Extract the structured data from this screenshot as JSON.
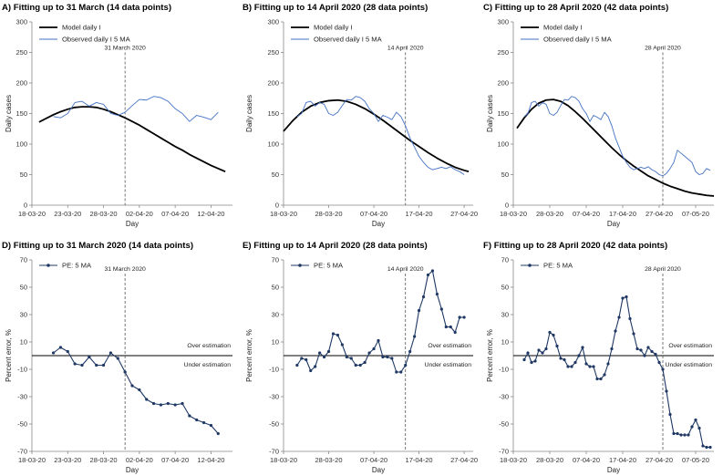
{
  "chart_data": [
    {
      "id": "A",
      "type": "line",
      "title": "A) Fitting up to 31 March (14 data points)",
      "xlabel": "Day",
      "ylabel": "Daily cases",
      "ylim": [
        0,
        300
      ],
      "yticks": [
        0,
        50,
        100,
        150,
        200,
        250,
        300
      ],
      "xlim": [
        0,
        55
      ],
      "xticks": [
        {
          "x": 0,
          "label": "18-03-20"
        },
        {
          "x": 5,
          "label": "23-03-20"
        },
        {
          "x": 10,
          "label": "28-03-20"
        },
        {
          "x": 15,
          "label": "02-04-20"
        },
        {
          "x": 20,
          "label": "07-04-20"
        },
        {
          "x": 25,
          "label": "12-04-20"
        }
      ],
      "xlim_days": [
        0,
        28
      ],
      "grid": false,
      "legend": "top-left",
      "vline": {
        "x": 13,
        "label": "31 March 2020"
      },
      "series": [
        {
          "name": "Model daily I",
          "color": "#000000",
          "style": "thick",
          "x": [
            1,
            2,
            3,
            4,
            5,
            6,
            7,
            8,
            9,
            10,
            11,
            12,
            13,
            14,
            15,
            16,
            17,
            18,
            19,
            20,
            21,
            22,
            23,
            24,
            25,
            26,
            27
          ],
          "values": [
            136,
            142,
            148,
            153,
            157,
            160,
            161,
            161,
            160,
            157,
            153,
            148,
            143,
            137,
            131,
            124,
            117,
            110,
            103,
            96,
            90,
            83,
            77,
            71,
            65,
            60,
            55
          ]
        },
        {
          "name": "Observed daily I 5 MA",
          "color": "#4472C4",
          "style": "thin",
          "x": [
            3,
            4,
            5,
            6,
            7,
            8,
            9,
            10,
            11,
            12,
            13,
            14,
            15,
            16,
            17,
            18,
            19,
            20,
            21,
            22,
            23,
            24,
            25,
            26
          ],
          "values": [
            145,
            143,
            150,
            168,
            170,
            162,
            168,
            165,
            150,
            147,
            152,
            163,
            173,
            172,
            178,
            176,
            170,
            158,
            150,
            137,
            147,
            144,
            140,
            152
          ]
        }
      ]
    },
    {
      "id": "B",
      "type": "line",
      "title": "B) Fitting up to 14 April 2020 (28 data points)",
      "xlabel": "Day",
      "ylabel": "Daily cases",
      "ylim": [
        0,
        300
      ],
      "yticks": [
        0,
        50,
        100,
        150,
        200,
        250,
        300
      ],
      "xticks": [
        {
          "x": 0,
          "label": "18-03-20"
        },
        {
          "x": 10,
          "label": "28-03-20"
        },
        {
          "x": 20,
          "label": "07-04-20"
        },
        {
          "x": 30,
          "label": "17-04-20"
        },
        {
          "x": 40,
          "label": "27-04-20"
        }
      ],
      "xlim_days": [
        0,
        42
      ],
      "grid": false,
      "legend": "top-left",
      "vline": {
        "x": 27,
        "label": "14 April 2020"
      },
      "series": [
        {
          "name": "Model daily I",
          "color": "#000000",
          "style": "thick",
          "x": [
            0,
            2,
            4,
            6,
            8,
            10,
            12,
            14,
            16,
            18,
            20,
            22,
            24,
            26,
            28,
            30,
            32,
            34,
            36,
            38,
            40,
            41
          ],
          "values": [
            121,
            138,
            152,
            162,
            168,
            171,
            172,
            170,
            165,
            158,
            149,
            139,
            128,
            117,
            106,
            96,
            86,
            77,
            69,
            62,
            57,
            55
          ]
        },
        {
          "name": "Observed daily I 5 MA",
          "color": "#4472C4",
          "style": "thin",
          "x": [
            3,
            4,
            5,
            6,
            7,
            8,
            9,
            10,
            11,
            12,
            13,
            14,
            15,
            16,
            17,
            18,
            19,
            20,
            21,
            22,
            23,
            24,
            25,
            26,
            27,
            28,
            29,
            30,
            31,
            32,
            33,
            34,
            35,
            36,
            37,
            38,
            39,
            40
          ],
          "values": [
            145,
            150,
            168,
            170,
            162,
            168,
            165,
            150,
            147,
            152,
            163,
            173,
            172,
            178,
            176,
            170,
            158,
            150,
            137,
            147,
            144,
            140,
            152,
            145,
            130,
            110,
            95,
            80,
            70,
            62,
            58,
            60,
            62,
            60,
            63,
            58,
            55,
            50
          ]
        }
      ]
    },
    {
      "id": "C",
      "type": "line",
      "title": "C) Fitting up to 28 April 2020 (42 data points)",
      "xlabel": "Day",
      "ylabel": "Daily cases",
      "ylim": [
        0,
        300
      ],
      "yticks": [
        0,
        50,
        100,
        150,
        200,
        250,
        300
      ],
      "xticks": [
        {
          "x": 0,
          "label": "18-03-20"
        },
        {
          "x": 10,
          "label": "28-03-20"
        },
        {
          "x": 20,
          "label": "07-04-20"
        },
        {
          "x": 30,
          "label": "17-04-20"
        },
        {
          "x": 40,
          "label": "27-04-20"
        },
        {
          "x": 50,
          "label": "07-05-20"
        }
      ],
      "xlim_days": [
        0,
        55
      ],
      "grid": false,
      "legend": "top-left",
      "vline": {
        "x": 41,
        "label": "28 April 2020"
      },
      "series": [
        {
          "name": "Model daily I",
          "color": "#000000",
          "style": "thick",
          "x": [
            1,
            3,
            5,
            7,
            9,
            11,
            13,
            15,
            17,
            19,
            21,
            23,
            25,
            27,
            29,
            31,
            33,
            35,
            37,
            39,
            41,
            43,
            45,
            47,
            49,
            51,
            53,
            55
          ],
          "values": [
            126,
            143,
            157,
            167,
            172,
            173,
            170,
            163,
            153,
            142,
            130,
            118,
            106,
            94,
            83,
            73,
            64,
            56,
            48,
            42,
            36,
            31,
            27,
            23,
            20,
            18,
            16,
            15
          ]
        },
        {
          "name": "Observed daily I 5 MA",
          "color": "#4472C4",
          "style": "thin",
          "x": [
            3,
            4,
            5,
            6,
            7,
            8,
            9,
            10,
            11,
            12,
            13,
            14,
            15,
            16,
            17,
            18,
            19,
            20,
            21,
            22,
            23,
            24,
            25,
            26,
            27,
            28,
            29,
            30,
            31,
            32,
            33,
            34,
            35,
            36,
            37,
            38,
            39,
            40,
            41,
            42,
            43,
            44,
            45,
            46,
            47,
            48,
            49,
            50,
            51,
            52,
            53,
            54
          ],
          "values": [
            145,
            150,
            168,
            170,
            162,
            168,
            165,
            150,
            147,
            152,
            163,
            173,
            172,
            178,
            176,
            170,
            158,
            150,
            137,
            147,
            144,
            140,
            152,
            145,
            130,
            110,
            95,
            80,
            70,
            62,
            58,
            60,
            62,
            60,
            63,
            58,
            55,
            50,
            48,
            52,
            60,
            70,
            90,
            85,
            80,
            75,
            70,
            55,
            50,
            52,
            60,
            57
          ]
        }
      ]
    },
    {
      "id": "D",
      "type": "line",
      "title": "D) Fitting up to 31 March 2020 (14 data points)",
      "xlabel": "Day",
      "ylabel": "Percent error, %",
      "ylim": [
        -70,
        70
      ],
      "yticks": [
        -70,
        -50,
        -30,
        -10,
        10,
        30,
        50,
        70
      ],
      "xticks": [
        {
          "x": 0,
          "label": "18-03-20"
        },
        {
          "x": 5,
          "label": "23-03-20"
        },
        {
          "x": 10,
          "label": "28-03-20"
        },
        {
          "x": 15,
          "label": "02-04-20"
        },
        {
          "x": 20,
          "label": "07-04-20"
        },
        {
          "x": 25,
          "label": "12-04-20"
        }
      ],
      "xlim_days": [
        0,
        28
      ],
      "grid": false,
      "legend": "top-left",
      "hline": 0,
      "vline": {
        "x": 13,
        "label": "31 March 2020"
      },
      "annotations": {
        "over": "Over estimation",
        "under": "Under estimation"
      },
      "series": [
        {
          "name": "PE: 5 MA",
          "color": "#1F3864",
          "style": "markers",
          "x": [
            3,
            4,
            5,
            6,
            7,
            8,
            9,
            10,
            11,
            12,
            13,
            14,
            15,
            16,
            17,
            18,
            19,
            20,
            21,
            22,
            23,
            24,
            25,
            26
          ],
          "values": [
            2,
            6,
            3,
            -6,
            -7,
            -1,
            -7,
            -7,
            2,
            -2,
            -12,
            -22,
            -25,
            -32,
            -35,
            -36,
            -35,
            -36,
            -35,
            -44,
            -47,
            -49,
            -51,
            -57
          ]
        }
      ]
    },
    {
      "id": "E",
      "type": "line",
      "title": "E) Fitting up to 14 April 2020 (28 data points)",
      "xlabel": "Day",
      "ylabel": "Percent error, %",
      "ylim": [
        -70,
        70
      ],
      "yticks": [
        -70,
        -50,
        -30,
        -10,
        10,
        30,
        50,
        70
      ],
      "xticks": [
        {
          "x": 0,
          "label": "18-03-20"
        },
        {
          "x": 10,
          "label": "28-03-20"
        },
        {
          "x": 20,
          "label": "07-04-20"
        },
        {
          "x": 30,
          "label": "17-04-20"
        },
        {
          "x": 40,
          "label": "27-04-20"
        }
      ],
      "xlim_days": [
        0,
        42
      ],
      "grid": false,
      "legend": "top-left",
      "hline": 0,
      "vline": {
        "x": 27,
        "label": "14 April 2020"
      },
      "annotations": {
        "over": "Over estimation",
        "under": "Under estimation"
      },
      "series": [
        {
          "name": "PE: 5 MA",
          "color": "#1F3864",
          "style": "markers",
          "x": [
            3,
            4,
            5,
            6,
            7,
            8,
            9,
            10,
            11,
            12,
            13,
            14,
            15,
            16,
            17,
            18,
            19,
            20,
            21,
            22,
            23,
            24,
            25,
            26,
            27,
            28,
            29,
            30,
            31,
            32,
            33,
            34,
            35,
            36,
            37,
            38,
            39,
            40
          ],
          "values": [
            -7,
            -2,
            -3,
            -11,
            -8,
            2,
            -1,
            3,
            16,
            15,
            8,
            -1,
            -2,
            -7,
            -7,
            -5,
            2,
            5,
            11,
            -1,
            -1,
            -2,
            -12,
            -12,
            -7,
            3,
            14,
            33,
            43,
            59,
            62,
            45,
            34,
            21,
            21,
            17,
            28,
            28
          ]
        }
      ]
    },
    {
      "id": "F",
      "type": "line",
      "title": "F) Fitting up to 28 April 2020 (42 data points)",
      "xlabel": "Day",
      "ylabel": "Percent error, %",
      "ylim": [
        -70,
        70
      ],
      "yticks": [
        -70,
        -50,
        -30,
        -10,
        10,
        30,
        50,
        70
      ],
      "xticks": [
        {
          "x": 0,
          "label": "18-03-20"
        },
        {
          "x": 10,
          "label": "28-03-20"
        },
        {
          "x": 20,
          "label": "07-04-20"
        },
        {
          "x": 30,
          "label": "17-04-20"
        },
        {
          "x": 40,
          "label": "27-04-20"
        },
        {
          "x": 50,
          "label": "07-05-20"
        }
      ],
      "xlim_days": [
        0,
        55
      ],
      "grid": false,
      "legend": "top-left",
      "hline": 0,
      "vline": {
        "x": 41,
        "label": "28 April 2020"
      },
      "annotations": {
        "over": "Over estimation",
        "under": "Under estimation"
      },
      "series": [
        {
          "name": "PE: 5 MA",
          "color": "#1F3864",
          "style": "markers",
          "x": [
            3,
            4,
            5,
            6,
            7,
            8,
            9,
            10,
            11,
            12,
            13,
            14,
            15,
            16,
            17,
            18,
            19,
            20,
            21,
            22,
            23,
            24,
            25,
            26,
            27,
            28,
            29,
            30,
            31,
            32,
            33,
            34,
            35,
            36,
            37,
            38,
            39,
            40,
            41,
            42,
            43,
            44,
            45,
            46,
            47,
            48,
            49,
            50,
            51,
            52,
            53,
            54
          ],
          "values": [
            -3,
            2,
            -5,
            -4,
            4,
            2,
            5,
            17,
            15,
            7,
            -2,
            -3,
            -8,
            -8,
            -5,
            0,
            6,
            -6,
            -8,
            -8,
            -17,
            -17,
            -14,
            -6,
            5,
            18,
            28,
            42,
            43,
            27,
            16,
            5,
            4,
            0,
            6,
            3,
            1,
            -5,
            -10,
            -26,
            -43,
            -57,
            -57,
            -58,
            -58,
            -58,
            -52,
            -47,
            -53,
            -66,
            -67,
            -67
          ]
        }
      ]
    }
  ]
}
